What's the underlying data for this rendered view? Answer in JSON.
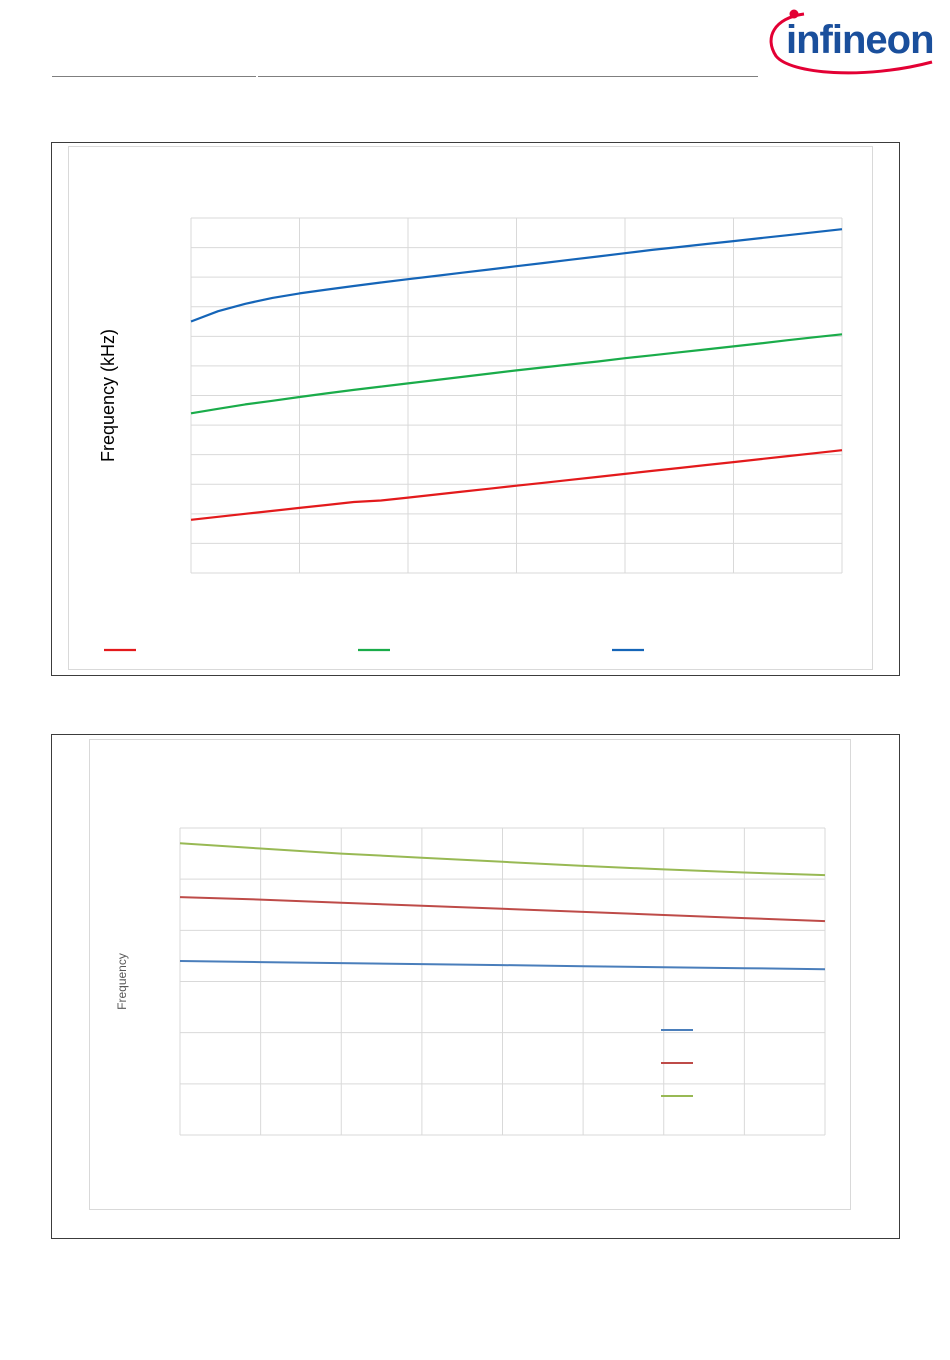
{
  "brand": {
    "logo_text": "infineon",
    "logo_colors": {
      "text": "#1a4f9c",
      "swoosh": "#e30034"
    }
  },
  "chart_data": [
    {
      "type": "line",
      "title": "",
      "xlabel": "",
      "ylabel": "Frequency (kHz)",
      "grid": true,
      "legend_position": "bottom",
      "x": [
        0,
        0.25,
        0.5,
        0.75,
        1,
        1.25,
        1.5,
        1.75,
        2,
        2.25,
        2.5,
        2.75,
        3,
        3.25,
        3.5,
        3.75,
        4,
        4.25,
        4.5,
        4.75,
        5,
        5.25,
        5.5,
        5.75,
        6
      ],
      "xlim": [
        0,
        6
      ],
      "ylim": [
        0,
        12
      ],
      "series": [
        {
          "color": "#e31a1c",
          "values": [
            1.8,
            1.9,
            2.0,
            2.1,
            2.2,
            2.3,
            2.4,
            2.45,
            2.55,
            2.65,
            2.75,
            2.85,
            2.95,
            3.05,
            3.15,
            3.25,
            3.35,
            3.45,
            3.55,
            3.65,
            3.75,
            3.85,
            3.95,
            4.05,
            4.15
          ]
        },
        {
          "color": "#1aac4a",
          "values": [
            5.4,
            5.55,
            5.7,
            5.82,
            5.95,
            6.07,
            6.19,
            6.3,
            6.41,
            6.52,
            6.63,
            6.74,
            6.85,
            6.95,
            7.05,
            7.15,
            7.26,
            7.36,
            7.46,
            7.56,
            7.66,
            7.76,
            7.87,
            7.97,
            8.07
          ]
        },
        {
          "color": "#1565b8",
          "values": [
            8.5,
            8.85,
            9.1,
            9.3,
            9.45,
            9.58,
            9.7,
            9.82,
            9.93,
            10.04,
            10.15,
            10.26,
            10.37,
            10.48,
            10.59,
            10.7,
            10.81,
            10.92,
            11.02,
            11.12,
            11.22,
            11.32,
            11.42,
            11.52,
            11.62
          ]
        }
      ]
    },
    {
      "type": "line",
      "title": "",
      "xlabel": "",
      "ylabel": "Frequency",
      "grid": true,
      "legend_position": "right",
      "x": [
        0,
        1,
        2,
        3,
        4,
        5,
        6,
        7,
        8
      ],
      "xlim": [
        0,
        8
      ],
      "ylim": [
        0,
        6
      ],
      "series": [
        {
          "color": "#4a7ebb",
          "values": [
            3.4,
            3.38,
            3.36,
            3.34,
            3.32,
            3.3,
            3.28,
            3.26,
            3.24
          ]
        },
        {
          "color": "#be4b48",
          "values": [
            4.65,
            4.6,
            4.54,
            4.48,
            4.42,
            4.36,
            4.3,
            4.24,
            4.18
          ]
        },
        {
          "color": "#98b954",
          "values": [
            5.7,
            5.6,
            5.5,
            5.42,
            5.34,
            5.26,
            5.19,
            5.13,
            5.08
          ]
        }
      ]
    }
  ]
}
